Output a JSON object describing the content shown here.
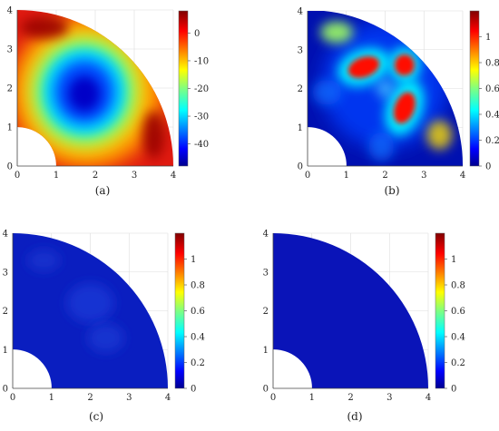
{
  "panels": [
    {
      "caption": "(a)",
      "x_ticks": [
        "0",
        "1",
        "2",
        "3",
        "4"
      ],
      "y_ticks": [
        "0",
        "1",
        "2",
        "3",
        "4"
      ],
      "x_range": [
        0,
        4
      ],
      "y_range": [
        0,
        4
      ],
      "domain": "quarter annulus, inner radius 1, outer radius 4",
      "colorbar_ticks": [
        "0",
        "-10",
        "-20",
        "-30",
        "-40"
      ],
      "colorbar_range": [
        -48,
        8
      ],
      "colormap": "jet",
      "field": "low central blue minimum near (1.7, 1.9), red near outer arc"
    },
    {
      "caption": "(b)",
      "x_ticks": [
        "0",
        "1",
        "2",
        "3",
        "4"
      ],
      "y_ticks": [
        "0",
        "1",
        "2",
        "3",
        "4"
      ],
      "x_range": [
        0,
        4
      ],
      "y_range": [
        0,
        4
      ],
      "domain": "quarter annulus, inner radius 1, outer radius 4",
      "colorbar_ticks": [
        "1",
        "0.8",
        "0.6",
        "0.4",
        "0.2",
        "0"
      ],
      "colorbar_range": [
        0,
        1.2
      ],
      "colormap": "jet",
      "field": "mostly blue with red peaks near (1.4, 2.5), (2.5, 2.6), (2.5, 1.5)"
    },
    {
      "caption": "(c)",
      "x_ticks": [
        "0",
        "1",
        "2",
        "3",
        "4"
      ],
      "y_ticks": [
        "0",
        "1",
        "2",
        "3",
        "4"
      ],
      "x_range": [
        0,
        4
      ],
      "y_range": [
        0,
        4
      ],
      "domain": "quarter annulus, inner radius 1, outer radius 4",
      "colorbar_ticks": [
        "1",
        "0.8",
        "0.6",
        "0.4",
        "0.2",
        "0"
      ],
      "colorbar_range": [
        0,
        1.2
      ],
      "colormap": "jet",
      "field": "near zero everywhere with faint blotches"
    },
    {
      "caption": "(d)",
      "x_ticks": [
        "0",
        "1",
        "2",
        "3",
        "4"
      ],
      "y_ticks": [
        "0",
        "1",
        "2",
        "3",
        "4"
      ],
      "x_range": [
        0,
        4
      ],
      "y_range": [
        0,
        4
      ],
      "domain": "quarter annulus, inner radius 1, outer radius 4",
      "colorbar_ticks": [
        "1",
        "0.8",
        "0.6",
        "0.4",
        "0.2",
        "0"
      ],
      "colorbar_range": [
        0,
        1.2
      ],
      "colormap": "jet",
      "field": "uniform near zero"
    }
  ]
}
